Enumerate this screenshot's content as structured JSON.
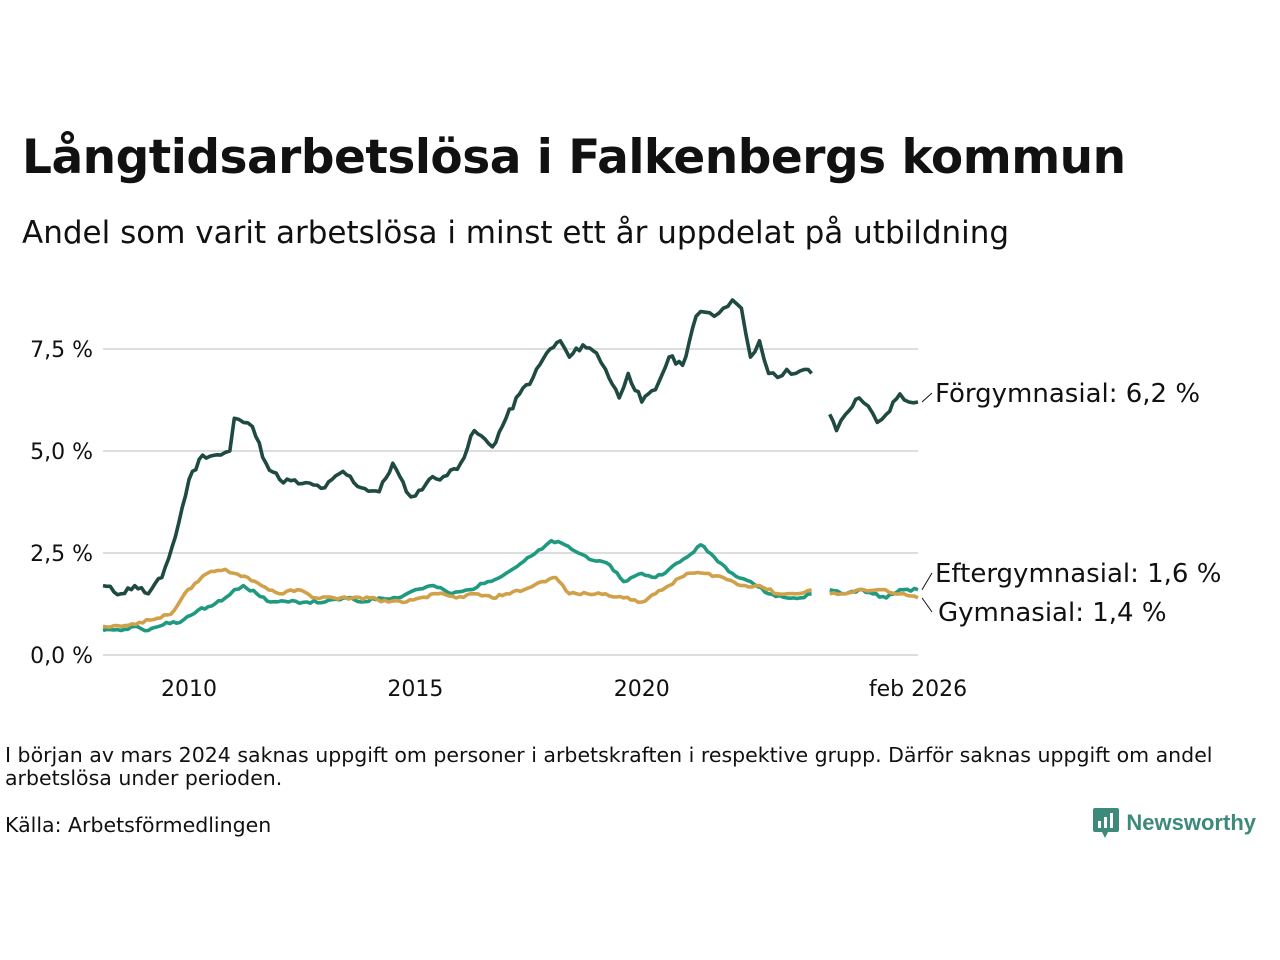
{
  "title": "Långtidsarbetslösa i Falkenbergs kommun",
  "subtitle": "Andel som varit arbetslösa i minst ett år uppdelat på utbildning",
  "note": "I början av mars 2024 saknas uppgift om personer i arbetskraften i respektive grupp. Därför saknas uppgift om andel arbetslösa under perioden.",
  "source": "Källa: Arbetsförmedlingen",
  "brand": "Newsworthy",
  "colors": {
    "forgymnasial": "#1f4a42",
    "eftergymnasial": "#1f9a80",
    "gymnasial": "#d1a14a",
    "grid": "#dddddd",
    "brand": "#3d8a7a"
  },
  "chart_data": {
    "type": "line",
    "title": "Långtidsarbetslösa i Falkenbergs kommun",
    "xlabel": "",
    "ylabel": "",
    "x_range": [
      2008.1,
      2026.1
    ],
    "ylim": [
      0,
      8.7
    ],
    "y_ticks": [
      0,
      2.5,
      5,
      7.5
    ],
    "y_tick_labels": [
      "0,0 %",
      "2,5 %",
      "5,0 %",
      "7,5 %"
    ],
    "x_ticks": [
      2010,
      2015,
      2020,
      2026.1
    ],
    "x_tick_labels": [
      "2010",
      "2015",
      "2020",
      "feb 2026"
    ],
    "grid": true,
    "gap": [
      2023.75,
      2024.15
    ],
    "series": [
      {
        "name": "Förgymnasial",
        "end_label": "Förgymnasial: 6,2 %",
        "color": "#1f4a42",
        "points": [
          [
            2008.1,
            1.7
          ],
          [
            2008.5,
            1.5
          ],
          [
            2008.8,
            1.7
          ],
          [
            2009.1,
            1.5
          ],
          [
            2009.4,
            1.9
          ],
          [
            2009.7,
            2.9
          ],
          [
            2010.0,
            4.3
          ],
          [
            2010.3,
            4.9
          ],
          [
            2010.7,
            4.9
          ],
          [
            2010.9,
            5.0
          ],
          [
            2011.0,
            5.8
          ],
          [
            2011.2,
            5.7
          ],
          [
            2011.4,
            5.6
          ],
          [
            2011.7,
            4.7
          ],
          [
            2012.0,
            4.3
          ],
          [
            2012.5,
            4.2
          ],
          [
            2013.0,
            4.1
          ],
          [
            2013.4,
            4.5
          ],
          [
            2013.8,
            4.1
          ],
          [
            2014.2,
            4.0
          ],
          [
            2014.5,
            4.7
          ],
          [
            2014.8,
            4.0
          ],
          [
            2015.0,
            3.9
          ],
          [
            2015.3,
            4.3
          ],
          [
            2015.7,
            4.4
          ],
          [
            2016.0,
            4.7
          ],
          [
            2016.3,
            5.5
          ],
          [
            2016.7,
            5.1
          ],
          [
            2017.0,
            5.8
          ],
          [
            2017.3,
            6.4
          ],
          [
            2017.6,
            6.8
          ],
          [
            2017.9,
            7.4
          ],
          [
            2018.2,
            7.7
          ],
          [
            2018.4,
            7.3
          ],
          [
            2018.7,
            7.6
          ],
          [
            2019.0,
            7.4
          ],
          [
            2019.2,
            7.0
          ],
          [
            2019.5,
            6.3
          ],
          [
            2019.7,
            6.9
          ],
          [
            2020.0,
            6.2
          ],
          [
            2020.3,
            6.5
          ],
          [
            2020.6,
            7.3
          ],
          [
            2020.9,
            7.1
          ],
          [
            2021.2,
            8.3
          ],
          [
            2021.4,
            8.4
          ],
          [
            2021.6,
            8.3
          ],
          [
            2021.8,
            8.5
          ],
          [
            2022.0,
            8.7
          ],
          [
            2022.2,
            8.5
          ],
          [
            2022.4,
            7.3
          ],
          [
            2022.6,
            7.7
          ],
          [
            2022.8,
            6.9
          ],
          [
            2023.0,
            6.8
          ],
          [
            2023.2,
            7.0
          ],
          [
            2023.4,
            6.9
          ],
          [
            2023.6,
            7.0
          ],
          [
            2023.75,
            6.9
          ],
          [
            2024.15,
            5.9
          ],
          [
            2024.3,
            5.5
          ],
          [
            2024.5,
            5.9
          ],
          [
            2024.8,
            6.3
          ],
          [
            2025.0,
            6.1
          ],
          [
            2025.2,
            5.7
          ],
          [
            2025.4,
            5.9
          ],
          [
            2025.7,
            6.4
          ],
          [
            2025.9,
            6.2
          ],
          [
            2026.1,
            6.2
          ]
        ]
      },
      {
        "name": "Eftergymnasial",
        "end_label": "Eftergymnasial: 1,6 %",
        "color": "#1f9a80",
        "points": [
          [
            2008.1,
            0.6
          ],
          [
            2008.5,
            0.6
          ],
          [
            2008.8,
            0.7
          ],
          [
            2009.1,
            0.6
          ],
          [
            2009.5,
            0.8
          ],
          [
            2009.8,
            0.8
          ],
          [
            2010.2,
            1.1
          ],
          [
            2010.5,
            1.2
          ],
          [
            2010.8,
            1.4
          ],
          [
            2011.0,
            1.6
          ],
          [
            2011.2,
            1.7
          ],
          [
            2011.5,
            1.5
          ],
          [
            2011.8,
            1.3
          ],
          [
            2012.2,
            1.3
          ],
          [
            2012.6,
            1.3
          ],
          [
            2013.0,
            1.3
          ],
          [
            2013.5,
            1.4
          ],
          [
            2013.8,
            1.3
          ],
          [
            2014.2,
            1.4
          ],
          [
            2014.6,
            1.4
          ],
          [
            2015.0,
            1.6
          ],
          [
            2015.4,
            1.7
          ],
          [
            2015.8,
            1.5
          ],
          [
            2016.2,
            1.6
          ],
          [
            2016.6,
            1.8
          ],
          [
            2017.0,
            2.0
          ],
          [
            2017.4,
            2.3
          ],
          [
            2017.8,
            2.6
          ],
          [
            2018.0,
            2.8
          ],
          [
            2018.3,
            2.7
          ],
          [
            2018.6,
            2.5
          ],
          [
            2019.0,
            2.3
          ],
          [
            2019.3,
            2.2
          ],
          [
            2019.6,
            1.8
          ],
          [
            2020.0,
            2.0
          ],
          [
            2020.3,
            1.9
          ],
          [
            2020.6,
            2.1
          ],
          [
            2021.0,
            2.4
          ],
          [
            2021.3,
            2.7
          ],
          [
            2021.6,
            2.4
          ],
          [
            2022.0,
            2.0
          ],
          [
            2022.4,
            1.8
          ],
          [
            2022.8,
            1.5
          ],
          [
            2023.2,
            1.4
          ],
          [
            2023.5,
            1.4
          ],
          [
            2023.75,
            1.5
          ],
          [
            2024.15,
            1.6
          ],
          [
            2024.5,
            1.5
          ],
          [
            2024.8,
            1.6
          ],
          [
            2025.1,
            1.5
          ],
          [
            2025.4,
            1.4
          ],
          [
            2025.7,
            1.6
          ],
          [
            2026.1,
            1.6
          ]
        ]
      },
      {
        "name": "Gymnasial",
        "end_label": "Gymnasial: 1,4 %",
        "color": "#d1a14a",
        "points": [
          [
            2008.1,
            0.7
          ],
          [
            2008.5,
            0.7
          ],
          [
            2008.9,
            0.8
          ],
          [
            2009.3,
            0.9
          ],
          [
            2009.6,
            1.0
          ],
          [
            2009.9,
            1.5
          ],
          [
            2010.2,
            1.8
          ],
          [
            2010.4,
            2.0
          ],
          [
            2010.8,
            2.1
          ],
          [
            2011.0,
            2.0
          ],
          [
            2011.3,
            1.9
          ],
          [
            2011.6,
            1.7
          ],
          [
            2012.0,
            1.5
          ],
          [
            2012.4,
            1.6
          ],
          [
            2012.8,
            1.4
          ],
          [
            2013.2,
            1.4
          ],
          [
            2013.6,
            1.4
          ],
          [
            2014.0,
            1.4
          ],
          [
            2014.4,
            1.3
          ],
          [
            2014.8,
            1.3
          ],
          [
            2015.1,
            1.4
          ],
          [
            2015.5,
            1.5
          ],
          [
            2015.9,
            1.4
          ],
          [
            2016.3,
            1.5
          ],
          [
            2016.7,
            1.4
          ],
          [
            2017.0,
            1.5
          ],
          [
            2017.4,
            1.6
          ],
          [
            2017.8,
            1.8
          ],
          [
            2018.1,
            1.9
          ],
          [
            2018.4,
            1.5
          ],
          [
            2018.8,
            1.5
          ],
          [
            2019.2,
            1.5
          ],
          [
            2019.6,
            1.4
          ],
          [
            2020.0,
            1.3
          ],
          [
            2020.3,
            1.5
          ],
          [
            2020.6,
            1.7
          ],
          [
            2021.0,
            2.0
          ],
          [
            2021.4,
            2.0
          ],
          [
            2021.8,
            1.9
          ],
          [
            2022.2,
            1.7
          ],
          [
            2022.6,
            1.7
          ],
          [
            2023.0,
            1.5
          ],
          [
            2023.4,
            1.5
          ],
          [
            2023.75,
            1.6
          ],
          [
            2024.15,
            1.5
          ],
          [
            2024.5,
            1.5
          ],
          [
            2024.9,
            1.6
          ],
          [
            2025.3,
            1.6
          ],
          [
            2025.7,
            1.5
          ],
          [
            2026.1,
            1.4
          ]
        ]
      }
    ]
  }
}
